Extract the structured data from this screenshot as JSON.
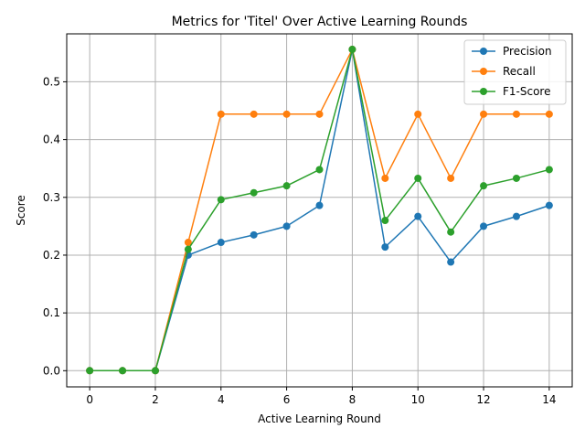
{
  "chart_data": {
    "type": "line",
    "title": "Metrics for 'Titel' Over Active Learning Rounds",
    "xlabel": "Active Learning Round",
    "ylabel": "Score",
    "x": [
      0,
      1,
      2,
      3,
      4,
      5,
      6,
      7,
      8,
      9,
      10,
      11,
      12,
      13,
      14
    ],
    "xlim": [
      -0.7,
      14.7
    ],
    "ylim": [
      -0.028,
      0.583
    ],
    "xticks": [
      0,
      2,
      4,
      6,
      8,
      10,
      12,
      14
    ],
    "xtick_labels": [
      "0",
      "2",
      "4",
      "6",
      "8",
      "10",
      "12",
      "14"
    ],
    "yticks": [
      0.0,
      0.1,
      0.2,
      0.3,
      0.4,
      0.5
    ],
    "ytick_labels": [
      "0.0",
      "0.1",
      "0.2",
      "0.3",
      "0.4",
      "0.5"
    ],
    "grid": true,
    "legend_position": "top-right",
    "series": [
      {
        "name": "Precision",
        "color": "#1f77b4",
        "values": [
          0.0,
          0.0,
          0.0,
          0.2,
          0.222,
          0.235,
          0.25,
          0.286,
          0.556,
          0.214,
          0.267,
          0.188,
          0.25,
          0.267,
          0.286
        ]
      },
      {
        "name": "Recall",
        "color": "#ff7f0e",
        "values": [
          0.0,
          0.0,
          0.0,
          0.222,
          0.444,
          0.444,
          0.444,
          0.444,
          0.556,
          0.333,
          0.444,
          0.333,
          0.444,
          0.444,
          0.444
        ]
      },
      {
        "name": "F1-Score",
        "color": "#2ca02c",
        "values": [
          0.0,
          0.0,
          0.0,
          0.21,
          0.296,
          0.308,
          0.32,
          0.348,
          0.556,
          0.26,
          0.333,
          0.24,
          0.32,
          0.333,
          0.348
        ]
      }
    ]
  }
}
